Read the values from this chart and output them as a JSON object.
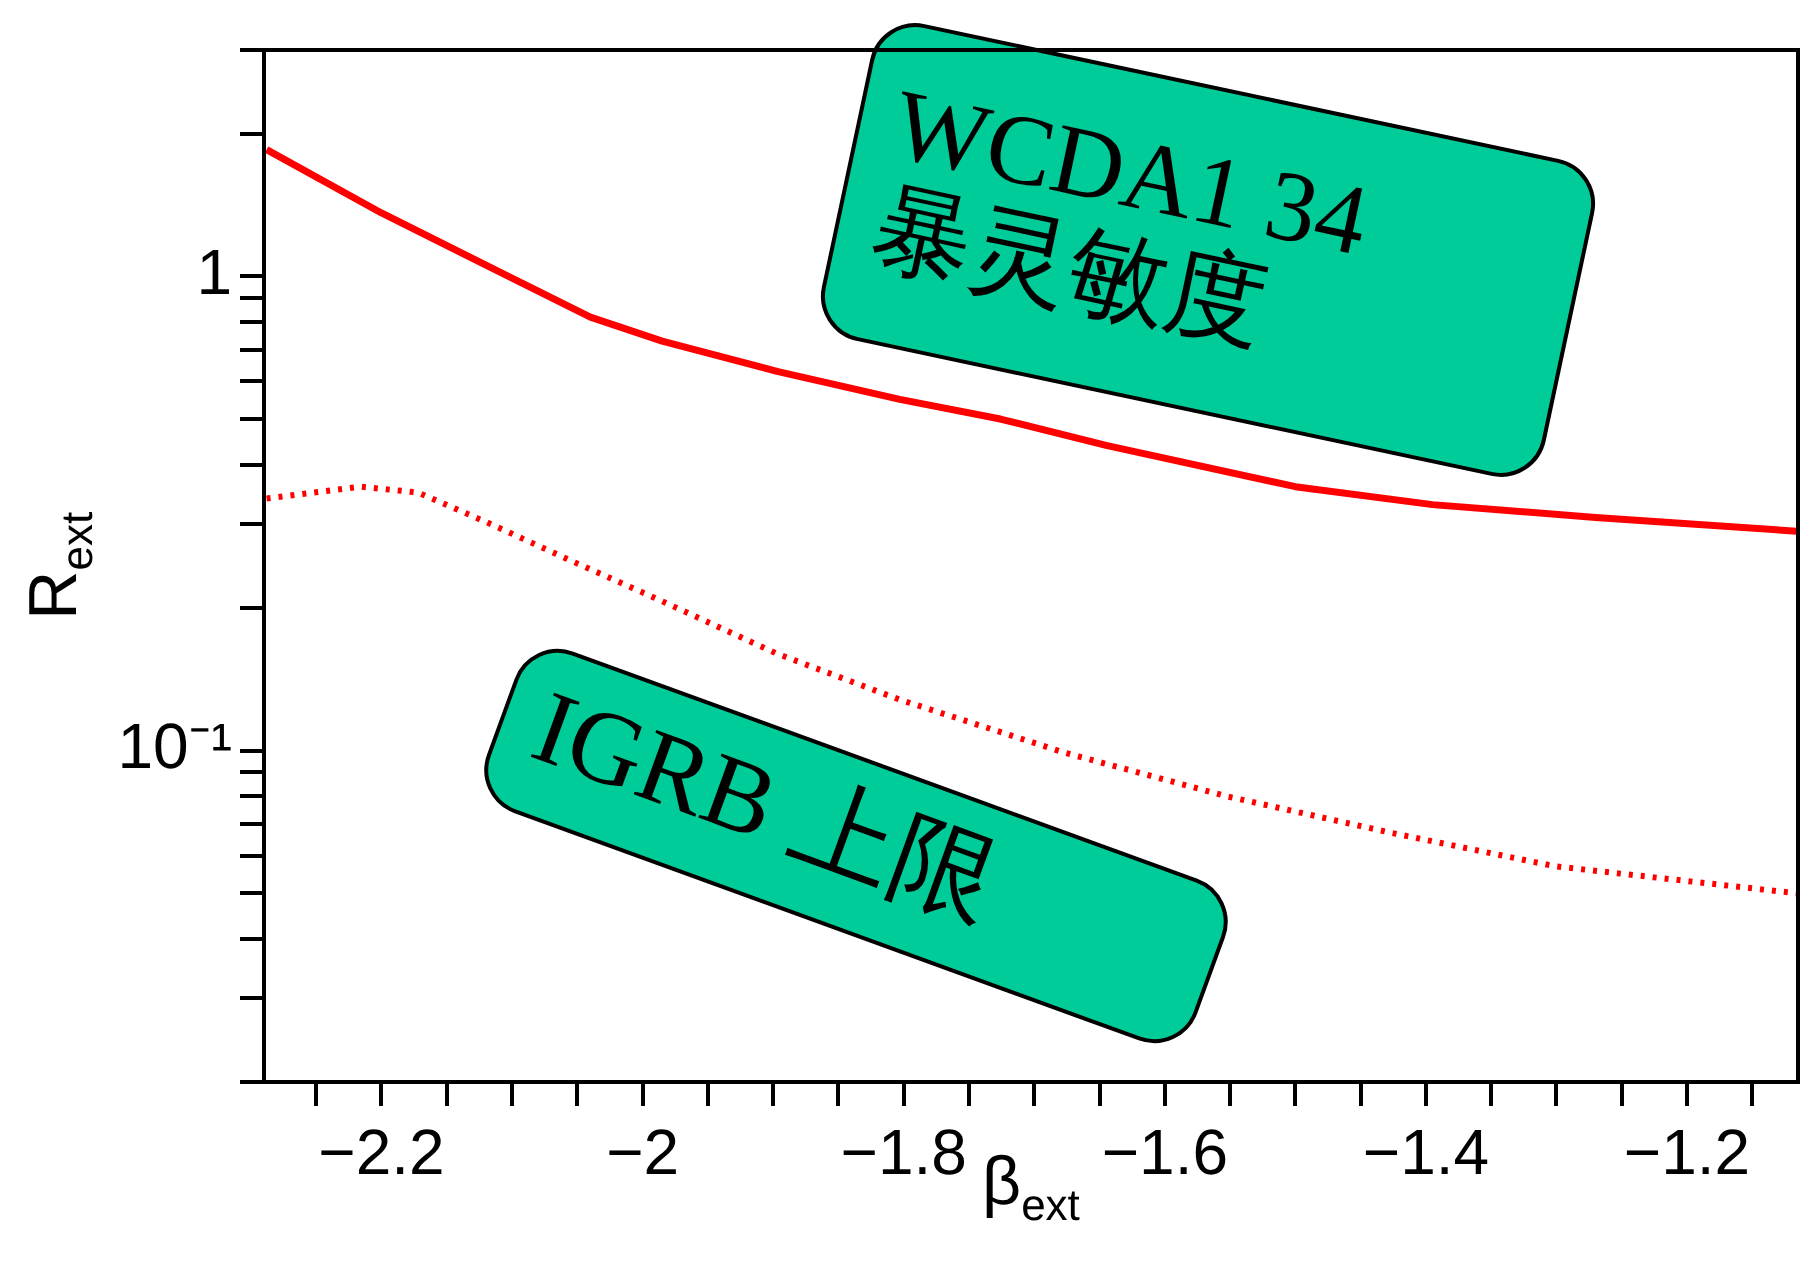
{
  "chart_data": {
    "type": "line",
    "xlabel": "β$_{ext}$",
    "ylabel": "R$_{ext}$",
    "log": "y",
    "grid": false,
    "legend": false,
    "marker": "none",
    "xlim": [
      -2.29,
      -1.115
    ],
    "ylim": [
      0.02,
      3
    ],
    "xticks": [
      {
        "value": -2.25,
        "label": null
      },
      -2.2,
      {
        "value": -2.15,
        "label": null
      },
      {
        "value": -2.1,
        "label": null
      },
      {
        "value": -2.05,
        "label": null
      },
      -2,
      {
        "value": -1.95,
        "label": null
      },
      {
        "value": -1.9,
        "label": null
      },
      {
        "value": -1.85,
        "label": null
      },
      -1.8,
      {
        "value": -1.75,
        "label": null
      },
      {
        "value": -1.7,
        "label": null
      },
      {
        "value": -1.65,
        "label": null
      },
      -1.6,
      {
        "value": -1.55,
        "label": null
      },
      {
        "value": -1.5,
        "label": null
      },
      {
        "value": -1.45,
        "label": null
      },
      -1.4,
      {
        "value": -1.35,
        "label": null
      },
      {
        "value": -1.3,
        "label": null
      },
      {
        "value": -1.25,
        "label": null
      },
      -1.2,
      {
        "value": -1.15,
        "label": null
      }
    ],
    "yticks": [
      {
        "value": 0.02,
        "label": null
      },
      {
        "value": 0.03,
        "label": null
      },
      {
        "value": 0.04,
        "label": null
      },
      {
        "value": 0.05,
        "label": null
      },
      {
        "value": 0.06,
        "label": null
      },
      {
        "value": 0.07,
        "label": null
      },
      {
        "value": 0.08,
        "label": null
      },
      {
        "value": 0.09,
        "label": null
      },
      {
        "value": 0.1,
        "label": "10⁻¹"
      },
      {
        "value": 0.2,
        "label": null
      },
      {
        "value": 0.3,
        "label": null
      },
      {
        "value": 0.4,
        "label": null
      },
      {
        "value": 0.5,
        "label": null
      },
      {
        "value": 0.6,
        "label": null
      },
      {
        "value": 0.7,
        "label": null
      },
      {
        "value": 0.8,
        "label": null
      },
      {
        "value": 0.9,
        "label": null
      },
      1,
      {
        "value": 2,
        "label": null
      },
      {
        "value": 3,
        "label": null
      }
    ],
    "series": [
      {
        "color": "#ff0000",
        "line_style": "solid",
        "x": [
          -2.288,
          -2.2,
          -2.09,
          -2.04,
          -1.985,
          -1.897,
          -1.803,
          -1.726,
          -1.645,
          -1.5,
          -1.395,
          -1.27,
          -1.116
        ],
        "values": [
          1.85,
          1.36,
          0.96,
          0.82,
          0.73,
          0.63,
          0.55,
          0.5,
          0.44,
          0.36,
          0.33,
          0.31,
          0.29
        ]
      },
      {
        "color": "#ff0000",
        "line_style": "dotted",
        "x": [
          -2.288,
          -2.216,
          -2.172,
          -2.116,
          -2.053,
          -1.991,
          -1.897,
          -1.803,
          -1.677,
          -1.552,
          -1.426,
          -1.301,
          -1.116
        ],
        "values": [
          0.34,
          0.36,
          0.35,
          0.3,
          0.25,
          0.21,
          0.16,
          0.128,
          0.099,
          0.08,
          0.067,
          0.057,
          0.05
        ]
      }
    ],
    "annotations": [
      "WCDA1 34\n暴灵敏度",
      "IGRB 上限"
    ]
  }
}
